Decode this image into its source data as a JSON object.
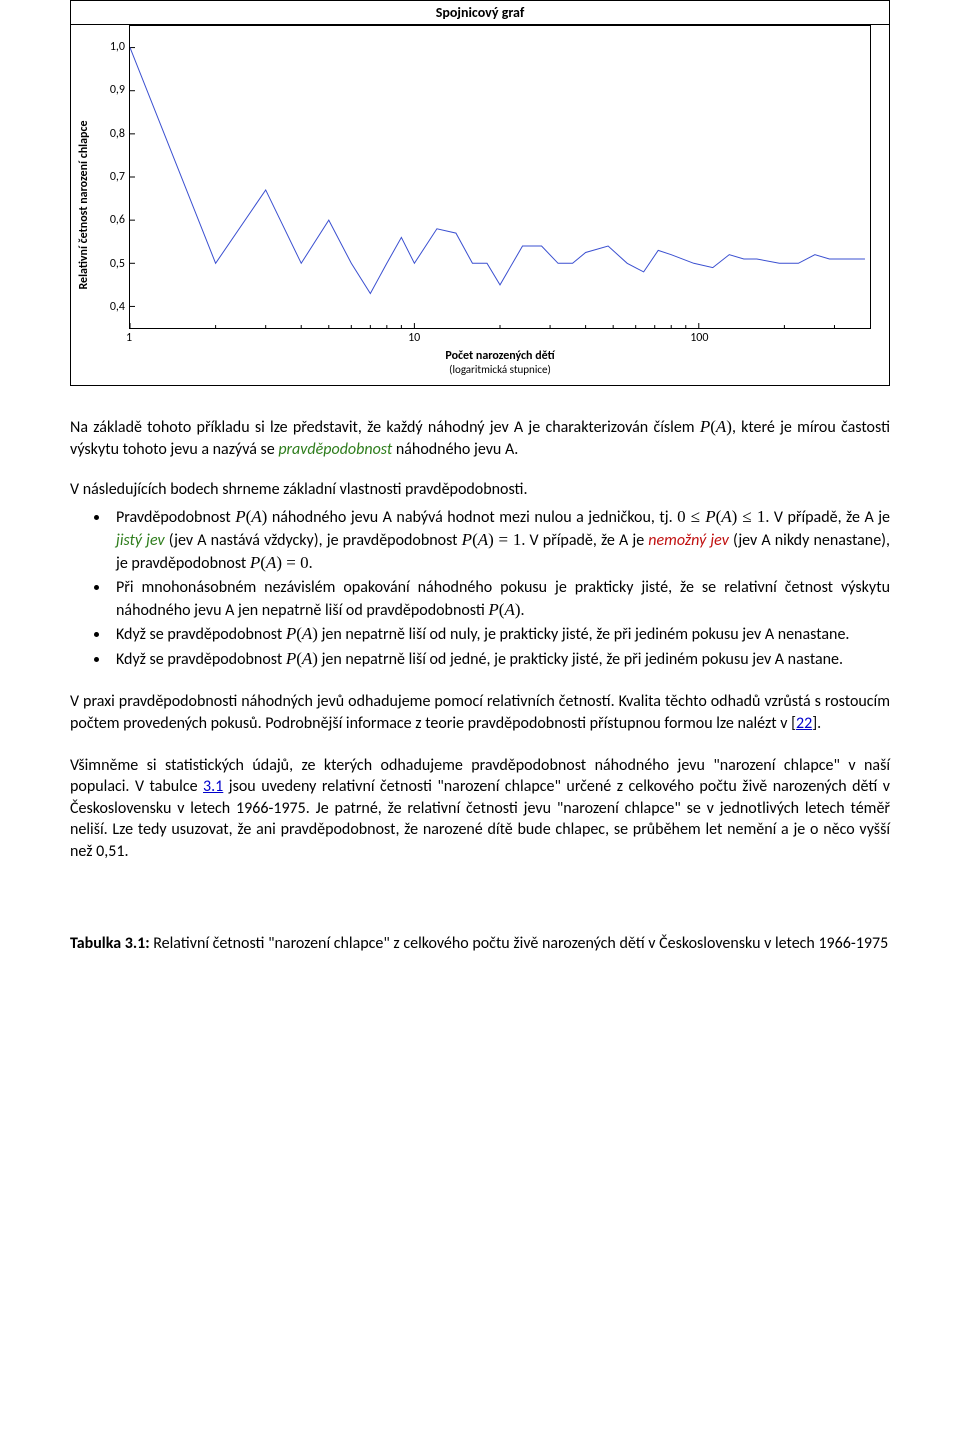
{
  "chart": {
    "type": "line",
    "title": "Spojnicový graf",
    "y_axis_label": "Relativní četnost narození chlapce",
    "x_axis_label": "Počet narozených dětí",
    "x_axis_sublabel": "(logaritmická stupnice)",
    "xscale": "log",
    "yscale": "linear",
    "ylim": [
      0.35,
      1.05
    ],
    "xlim": [
      1,
      400
    ],
    "y_ticks": [
      0.4,
      0.5,
      0.6,
      0.7,
      0.8,
      0.9,
      1.0
    ],
    "y_tick_labels": [
      "0,4",
      "0,5",
      "0,6",
      "0,7",
      "0,8",
      "0,9",
      "1,0"
    ],
    "x_ticks": [
      1,
      10,
      100
    ],
    "x_tick_labels": [
      "1",
      "10",
      "100"
    ],
    "line_color": "#3a4fd0",
    "background_color": "#ffffff",
    "border_color": "#000000",
    "line_width": 1,
    "title_fontsize": 14,
    "label_fontsize": 12,
    "tick_fontsize": 12,
    "data": {
      "x": [
        1,
        2,
        3,
        4,
        5,
        6,
        7,
        8,
        9,
        10,
        12,
        14,
        16,
        18,
        20,
        24,
        28,
        32,
        36,
        40,
        48,
        56,
        64,
        72,
        80,
        96,
        112,
        128,
        144,
        160,
        192,
        224,
        256,
        288,
        320,
        384
      ],
      "y": [
        1.0,
        0.5,
        0.67,
        0.5,
        0.6,
        0.5,
        0.43,
        0.5,
        0.56,
        0.5,
        0.58,
        0.57,
        0.5,
        0.5,
        0.45,
        0.54,
        0.54,
        0.5,
        0.5,
        0.525,
        0.54,
        0.5,
        0.48,
        0.53,
        0.52,
        0.5,
        0.49,
        0.52,
        0.51,
        0.51,
        0.5,
        0.5,
        0.52,
        0.51,
        0.51,
        0.51
      ]
    }
  },
  "text": {
    "intro": "Na základě tohoto příkladu si lze představit, že každý náhodný jev A je charakterizován číslem",
    "intro_pa": "P ( A )",
    "intro_cont": ", které je mírou častosti výskytu tohoto jevu a nazývá se ",
    "intro_ital": "pravděpodobnost",
    "intro_end": " náhodného jevu A.",
    "intro2": "V následujících bodech shrneme základní vlastnosti pravděpodobnosti.",
    "b1a": "Pravděpodobnost ",
    "b1b": "P ( A )",
    "b1c": " náhodného jevu A nabývá hodnot mezi nulou a jedničkou, tj. ",
    "b1d": "0 ≤ P ( A ) ≤ 1",
    "b1e": ". V případě, že A je ",
    "b1f": "jistý jev",
    "b1g": " (jev A nastává vždycky), je pravděpodobnost ",
    "b1h": "P ( A ) = 1",
    "b1i": ". V případě, že A je ",
    "b1j": "nemožný jev",
    "b1k": " (jev A nikdy nenastane), je pravděpodobnost ",
    "b1l": "P ( A ) = 0",
    "b1m": ".",
    "b2a": "Při mnohonásobném nezávislém opakování náhodného pokusu je prakticky jisté, že se relativní četnost výskytu náhodného jevu A jen nepatrně liší od pravděpodobnosti ",
    "b2b": "P ( A )",
    "b2c": ".",
    "b3a": "Když se pravděpodobnost ",
    "b3b": "P ( A )",
    "b3c": " jen nepatrně liší od nuly, je prakticky jisté, že při jediném pokusu jev A nenastane.",
    "b4a": "Když se pravděpodobnost ",
    "b4b": "P ( A )",
    "b4c": " jen nepatrně liší od jedné, je prakticky jisté, že při jediném pokusu jev A nastane.",
    "p1a": "V praxi pravděpodobnosti náhodných jevů odhadujeme pomocí relativních četností. Kvalita těchto odhadů vzrůstá s rostoucím počtem provedených pokusů. Podrobnější informace z teorie pravděpodobnosti přístupnou formou lze nalézt v [",
    "p1link": "22",
    "p1b": "].",
    "p2a": "Všimněme si statistických údajů, ze kterých odhadujeme pravděpodobnost náhodného jevu \"narození chlapce\" v naší populaci. V tabulce ",
    "p2link": "3.1",
    "p2b": " jsou uvedeny relativní četnosti \"narození chlapce\" určené z celkového počtu živě narozených dětí v Československu v letech 1966-1975. Je patrné, že relativní četnosti jevu \"narození chlapce\" se v jednotlivých letech téměř neliší. Lze tedy usuzovat, že ani pravděpodobnost, že narozené dítě bude chlapec, se průběhem let nemění a je o něco vyšší než 0,51.",
    "cap_bold": "Tabulka 3.1:",
    "cap_rest": " Relativní četnosti \"narození chlapce\" z celkového počtu živě narozených dětí v Československu v letech 1966-1975"
  }
}
